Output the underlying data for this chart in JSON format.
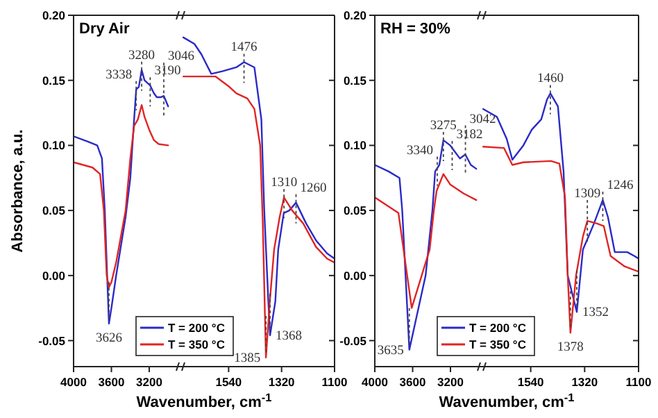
{
  "chart_data": [
    {
      "type": "line",
      "title": "Dry Air",
      "xlabel": "Wavenumber, cm$^{-1}$",
      "ylabel": "Absorbance, a.u.",
      "xlim": [
        4000,
        2870
      ],
      "ylim": [
        -0.07,
        0.2
      ],
      "xticks": [
        4000,
        3600,
        3200
      ],
      "yticks": [
        {
          "value": -0.05,
          "label": "-0.05"
        },
        {
          "value": 0,
          "label": "0.00"
        },
        {
          "value": 0.05,
          "label": "0.05"
        },
        {
          "value": 0.1,
          "label": "0.10"
        },
        {
          "value": 0.15,
          "label": "0.15"
        },
        {
          "value": 0.2,
          "label": "0.20"
        }
      ],
      "series": [
        {
          "color": "#2a2ac8",
          "x": [
            4000,
            3850,
            3750,
            3700,
            3670,
            3645,
            3626,
            3600,
            3550,
            3450,
            3400,
            3360,
            3338,
            3310,
            3280,
            3250,
            3220,
            3190,
            3150,
            3120,
            3080,
            3046,
            3000
          ],
          "values": [
            0.107,
            0.103,
            0.1,
            0.09,
            0.05,
            0.0,
            -0.037,
            -0.025,
            0.0,
            0.045,
            0.075,
            0.12,
            0.143,
            0.145,
            0.158,
            0.15,
            0.148,
            0.146,
            0.14,
            0.137,
            0.137,
            0.138,
            0.13
          ]
        },
        {
          "color": "#e02424",
          "x": [
            4000,
            3800,
            3720,
            3680,
            3650,
            3626,
            3600,
            3550,
            3450,
            3400,
            3360,
            3320,
            3280,
            3250,
            3200,
            3150,
            3100,
            3000
          ],
          "values": [
            0.087,
            0.083,
            0.078,
            0.05,
            0.0,
            -0.009,
            -0.005,
            0.01,
            0.05,
            0.09,
            0.115,
            0.12,
            0.131,
            0.122,
            0.112,
            0.104,
            0.101,
            0.1
          ]
        }
      ],
      "annotations": [
        {
          "text": "3338",
          "x": 3338,
          "y": 0.143
        },
        {
          "text": "3280",
          "x": 3280,
          "y": 0.158
        },
        {
          "text": "3190",
          "x": 3190,
          "y": 0.146
        },
        {
          "text": "3046",
          "x": 3046,
          "y": 0.138
        },
        {
          "text": "3626",
          "x": 3626,
          "y": -0.037
        }
      ]
    },
    {
      "type": "line",
      "xlim": [
        1740,
        1100
      ],
      "ylim": [
        -0.07,
        0.2
      ],
      "xticks": [
        1540,
        1320,
        1100
      ],
      "yticks": [
        {
          "value": -0.05,
          "label": null
        },
        {
          "value": 0,
          "label": null
        },
        {
          "value": 0.05,
          "label": null
        },
        {
          "value": 0.1,
          "label": null
        },
        {
          "value": 0.15,
          "label": null
        },
        {
          "value": 0.2,
          "label": null
        }
      ],
      "tick_labels": "x",
      "legend": "bottom left",
      "series": [
        {
          "name": "T = 200 °C",
          "color": "#2a2ac8",
          "x": [
            1728,
            1682,
            1653,
            1612,
            1566,
            1508,
            1476,
            1433,
            1404,
            1392,
            1375,
            1368,
            1346,
            1334,
            1311,
            1288,
            1260,
            1218,
            1177,
            1131,
            1100
          ],
          "values": [
            0.183,
            0.178,
            0.17,
            0.155,
            0.157,
            0.16,
            0.164,
            0.16,
            0.12,
            0.05,
            -0.02,
            -0.046,
            -0.02,
            0.02,
            0.048,
            0.05,
            0.056,
            0.04,
            0.027,
            0.017,
            0.013
          ]
        },
        {
          "name": "T = 350 °C",
          "color": "#e02424",
          "x": [
            1728,
            1595,
            1537,
            1508,
            1462,
            1433,
            1409,
            1398,
            1385,
            1369,
            1351,
            1328,
            1310,
            1276,
            1230,
            1177,
            1131,
            1100
          ],
          "values": [
            0.153,
            0.153,
            0.145,
            0.14,
            0.136,
            0.128,
            0.1,
            0.04,
            -0.063,
            -0.02,
            0.02,
            0.045,
            0.06,
            0.05,
            0.04,
            0.022,
            0.013,
            0.01
          ]
        }
      ],
      "annotations": [
        {
          "text": "1476",
          "x": 1476,
          "y": 0.164
        },
        {
          "text": "1385",
          "x": 1385,
          "y": -0.063
        },
        {
          "text": "1368",
          "x": 1368,
          "y": -0.046
        },
        {
          "text": "1310",
          "x": 1310,
          "y": 0.06
        },
        {
          "text": "1260",
          "x": 1260,
          "y": 0.056
        }
      ]
    },
    {
      "type": "line",
      "title": "RH = 30%",
      "xlabel": "Wavenumber, cm$^{-1}$",
      "xlim": [
        4000,
        2870
      ],
      "ylim": [
        -0.07,
        0.2
      ],
      "xticks": [
        4000,
        3600,
        3200
      ],
      "yticks": [
        {
          "value": -0.05,
          "label": "-0.05"
        },
        {
          "value": 0,
          "label": "0.00"
        },
        {
          "value": 0.05,
          "label": "0.05"
        },
        {
          "value": 0.1,
          "label": "0.10"
        },
        {
          "value": 0.15,
          "label": "0.15"
        },
        {
          "value": 0.2,
          "label": "0.20"
        }
      ],
      "series": [
        {
          "color": "#2a2ac8",
          "x": [
            4000,
            3855,
            3739,
            3710,
            3635,
            3463,
            3391,
            3362,
            3318,
            3275,
            3203,
            3173,
            3101,
            3043,
            2985,
            2927
          ],
          "values": [
            0.085,
            0.08,
            0.075,
            0.05,
            -0.057,
            0.0,
            0.05,
            0.08,
            0.085,
            0.104,
            0.1,
            0.097,
            0.09,
            0.093,
            0.085,
            0.082
          ]
        },
        {
          "color": "#e02424",
          "x": [
            4000,
            3750,
            3610,
            3420,
            3376,
            3347,
            3275,
            3203,
            3060,
            2927
          ],
          "values": [
            0.06,
            0.048,
            -0.025,
            0.02,
            0.05,
            0.065,
            0.078,
            0.07,
            0.063,
            0.058
          ]
        }
      ],
      "annotations": [
        {
          "text": "3340",
          "x": 3340,
          "y": 0.085
        },
        {
          "text": "3275",
          "x": 3275,
          "y": 0.104
        },
        {
          "text": "3182",
          "x": 3182,
          "y": 0.097
        },
        {
          "text": "3042",
          "x": 3042,
          "y": 0.093
        },
        {
          "text": "3635",
          "x": 3635,
          "y": -0.057
        }
      ]
    },
    {
      "type": "line",
      "xlim": [
        1740,
        1100
      ],
      "ylim": [
        -0.07,
        0.2
      ],
      "xticks": [
        1540,
        1320,
        1100
      ],
      "yticks": [
        {
          "value": -0.05,
          "label": null
        },
        {
          "value": 0,
          "label": null
        },
        {
          "value": 0.05,
          "label": null
        },
        {
          "value": 0.1,
          "label": null
        },
        {
          "value": 0.15,
          "label": null
        },
        {
          "value": 0.2,
          "label": null
        }
      ],
      "tick_labels": "x",
      "legend": "bottom left",
      "series": [
        {
          "name": "T = 200 °C",
          "color": "#2a2ac8",
          "x": [
            1734,
            1678,
            1638,
            1615,
            1570,
            1536,
            1497,
            1474,
            1460,
            1429,
            1406,
            1389,
            1352,
            1327,
            1304,
            1282,
            1246,
            1225,
            1197,
            1146,
            1117,
            1100
          ],
          "values": [
            0.128,
            0.122,
            0.105,
            0.089,
            0.1,
            0.112,
            0.12,
            0.135,
            0.14,
            0.13,
            0.08,
            0.0,
            -0.028,
            0.02,
            0.03,
            0.04,
            0.058,
            0.045,
            0.018,
            0.018,
            0.015,
            0.013
          ]
        },
        {
          "name": "T = 350 °C",
          "color": "#e02424",
          "x": [
            1734,
            1649,
            1615,
            1570,
            1457,
            1423,
            1400,
            1389,
            1378,
            1355,
            1327,
            1309,
            1270,
            1242,
            1214,
            1157,
            1100
          ],
          "values": [
            0.099,
            0.098,
            0.085,
            0.087,
            0.088,
            0.086,
            0.06,
            0.0,
            -0.044,
            0.0,
            0.03,
            0.042,
            0.04,
            0.038,
            0.015,
            0.007,
            0.003
          ]
        }
      ],
      "annotations": [
        {
          "text": "1460",
          "x": 1460,
          "y": 0.14
        },
        {
          "text": "1378",
          "x": 1378,
          "y": -0.044
        },
        {
          "text": "1352",
          "x": 1352,
          "y": -0.028
        },
        {
          "text": "1309",
          "x": 1309,
          "y": 0.042
        },
        {
          "text": "1246",
          "x": 1246,
          "y": 0.058
        }
      ]
    }
  ]
}
